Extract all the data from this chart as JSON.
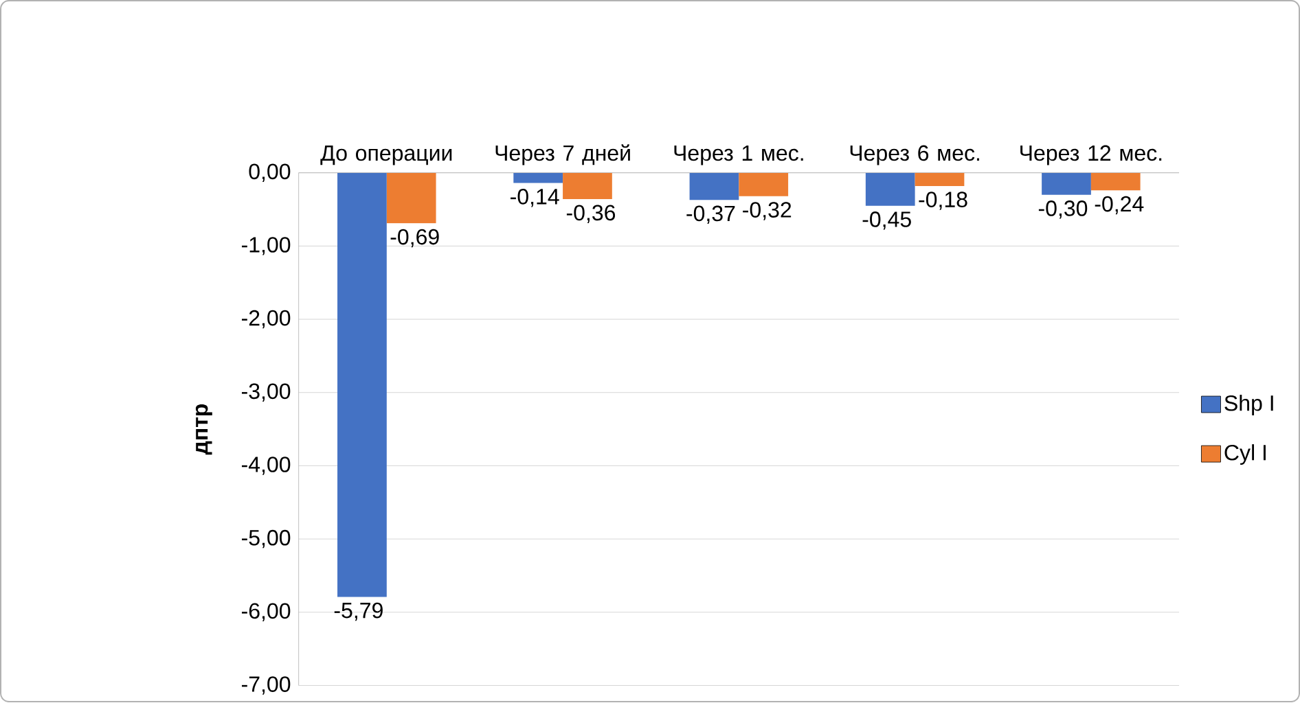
{
  "chart_data": {
    "type": "bar",
    "ylabel": "дптр",
    "categories": [
      "До операции",
      "Через 7 дней",
      "Через 1 мес.",
      "Через 6 мес.",
      "Через 12 мес."
    ],
    "series": [
      {
        "name": "Shp I",
        "color": "#4472c4",
        "values": [
          -5.79,
          -0.14,
          -0.37,
          -0.45,
          -0.3
        ],
        "value_labels": [
          "-5,79",
          "-0,14",
          "-0,37",
          "-0,45",
          "-0,30"
        ]
      },
      {
        "name": "Cyl I",
        "color": "#ed7d31",
        "values": [
          -0.69,
          -0.36,
          -0.32,
          -0.18,
          -0.24
        ],
        "value_labels": [
          "-0,69",
          "-0,36",
          "-0,32",
          "-0,18",
          "-0,24"
        ]
      }
    ],
    "ylim": [
      -7,
      0
    ],
    "yticks": [
      {
        "value": 0,
        "label": "0,00"
      },
      {
        "value": -1,
        "label": "-1,00"
      },
      {
        "value": -2,
        "label": "-2,00"
      },
      {
        "value": -3,
        "label": "-3,00"
      },
      {
        "value": -4,
        "label": "-4,00"
      },
      {
        "value": -5,
        "label": "-5,00"
      },
      {
        "value": -6,
        "label": "-6,00"
      },
      {
        "value": -7,
        "label": "-7,00"
      }
    ],
    "grid": "y",
    "legend": "right"
  }
}
